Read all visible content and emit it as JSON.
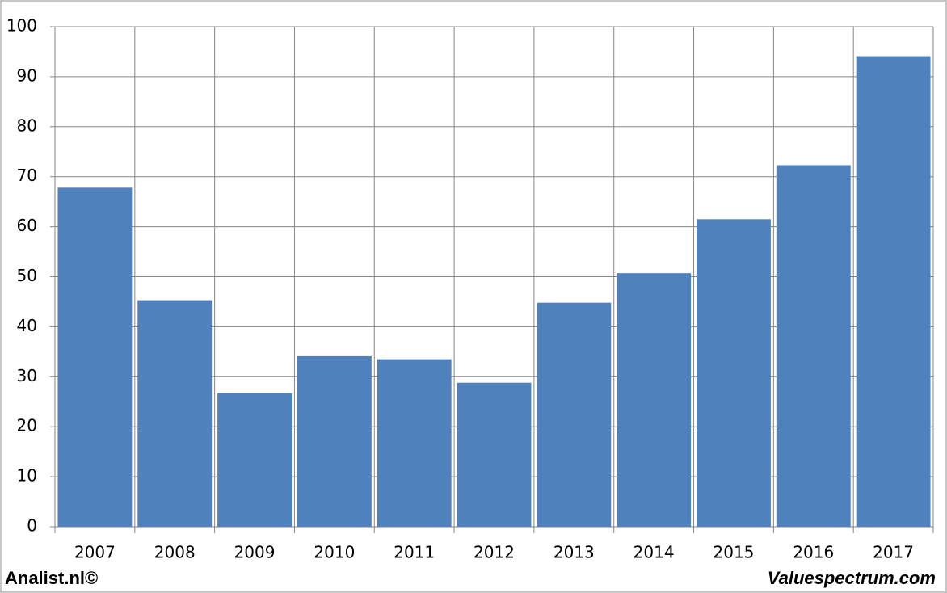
{
  "chart_data": {
    "type": "bar",
    "categories": [
      "2007",
      "2008",
      "2009",
      "2010",
      "2011",
      "2012",
      "2013",
      "2014",
      "2015",
      "2016",
      "2017"
    ],
    "values": [
      67.8,
      45.3,
      26.7,
      34.1,
      33.5,
      28.8,
      44.8,
      50.7,
      61.5,
      72.3,
      94.1
    ],
    "color": "#4f81bd",
    "ylim": [
      0,
      100
    ],
    "yticks": [
      0,
      10,
      20,
      30,
      40,
      50,
      60,
      70,
      80,
      90,
      100
    ],
    "grid": true,
    "annotations": [
      "Analist.nl©",
      "Valuespectrum.com"
    ]
  }
}
